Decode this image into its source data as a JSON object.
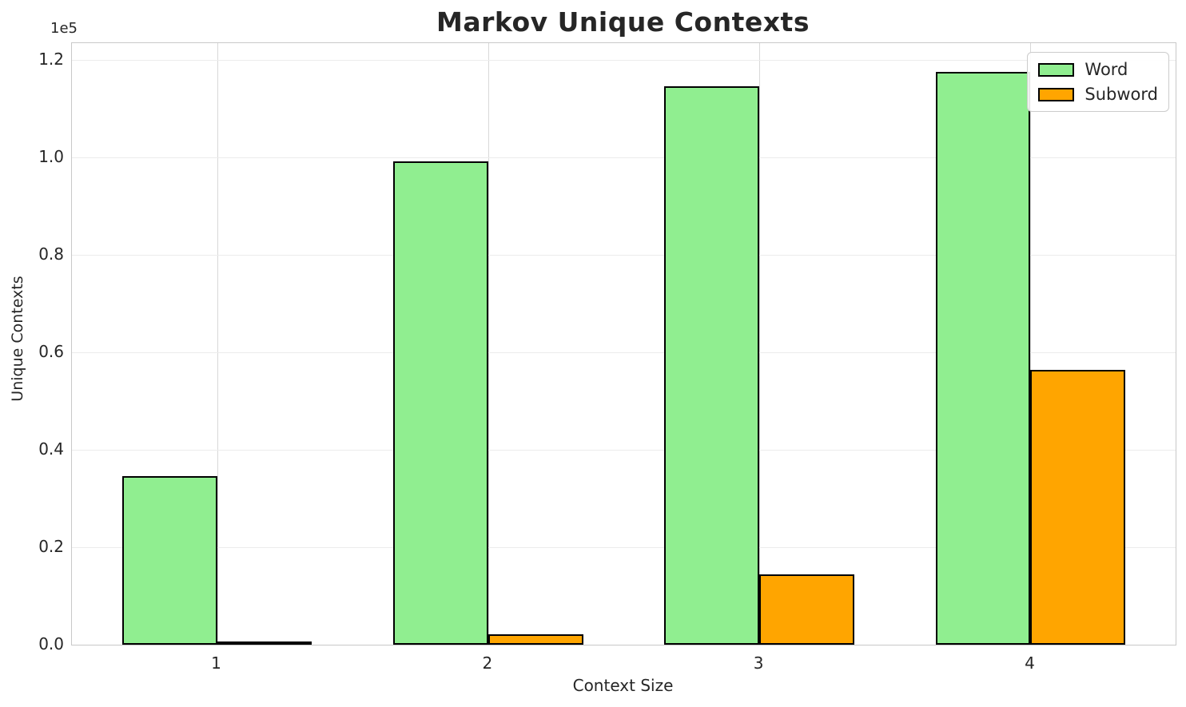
{
  "chart_data": {
    "type": "bar",
    "title": "Markov Unique Contexts",
    "xlabel": "Context Size",
    "ylabel": "Unique Contexts",
    "y_offset_text": "1e5",
    "categories": [
      "1",
      "2",
      "3",
      "4"
    ],
    "series": [
      {
        "name": "Word",
        "color": "#90EE90",
        "values": [
          34600,
          99300,
          114700,
          117600
        ]
      },
      {
        "name": "Subword",
        "color": "#FFA500",
        "values": [
          300,
          2100,
          14400,
          56400
        ]
      }
    ],
    "bar_width_data_units": 0.35,
    "bar_edge_color": "#000000",
    "xlim": [
      0.465,
      4.535
    ],
    "ylim": [
      0,
      123500
    ],
    "ytick_values": [
      0,
      20000,
      40000,
      60000,
      80000,
      100000,
      120000
    ],
    "ytick_labels": [
      "0.0",
      "0.2",
      "0.4",
      "0.6",
      "0.8",
      "1.0",
      "1.2"
    ],
    "grid": true,
    "legend_position": "upper right",
    "legend_entries": [
      "Word",
      "Subword"
    ]
  },
  "colors": {
    "text": "#262626",
    "spine": "#c8c8c8",
    "hgrid": "#ececec",
    "vgrid": "#d8d8d8",
    "background": "#ffffff"
  }
}
